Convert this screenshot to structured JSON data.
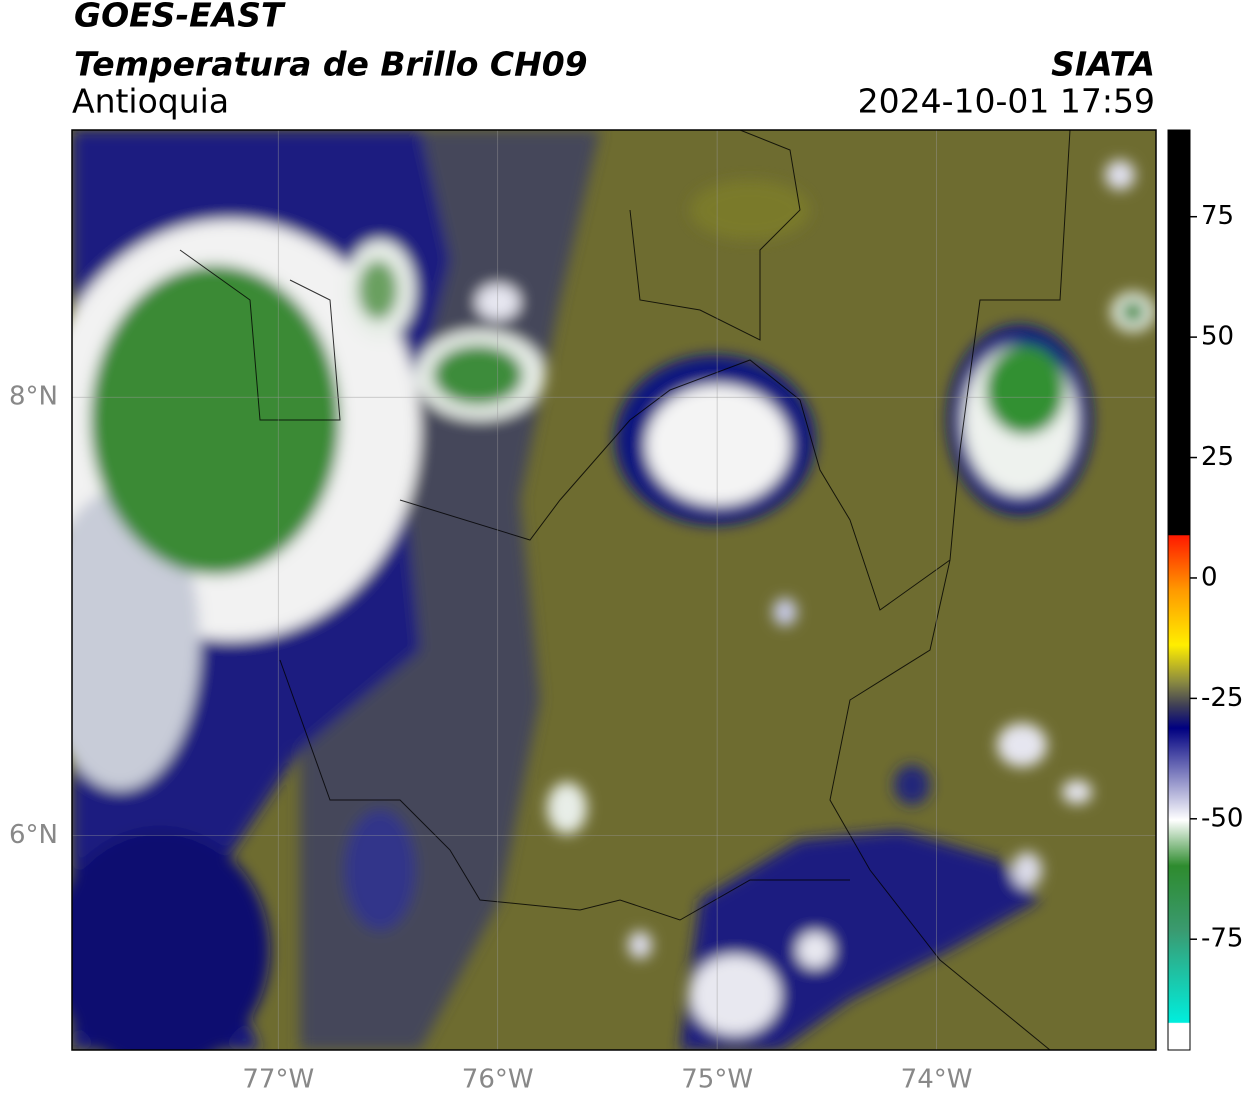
{
  "header": {
    "title": "GOES-EAST",
    "subtitle": "Temperatura de Brillo CH09",
    "region": "Antioquia",
    "org": "SIATA",
    "datetime": "2024-10-01 17:59"
  },
  "map": {
    "lon_lim": [
      -77.94,
      -73.0
    ],
    "lat_lim": [
      5.02,
      9.22
    ],
    "lon_ticks": [
      {
        "value": -77,
        "label": "77°W"
      },
      {
        "value": -76,
        "label": "76°W"
      },
      {
        "value": -75,
        "label": "75°W"
      },
      {
        "value": -74,
        "label": "74°W"
      }
    ],
    "lat_ticks": [
      {
        "value": 8,
        "label": "8°N"
      },
      {
        "value": 6,
        "label": "6°N"
      }
    ]
  },
  "colorbar": {
    "lim": [
      -98,
      93
    ],
    "ticks": [
      75,
      50,
      25,
      0,
      -25,
      -50,
      -75
    ]
  }
}
